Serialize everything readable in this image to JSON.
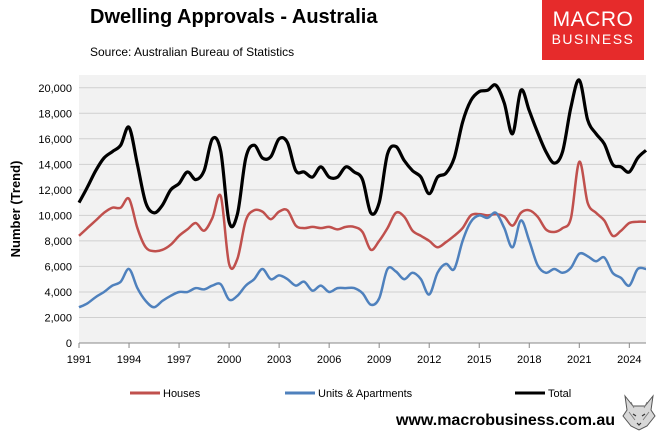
{
  "header": {
    "title": "Dwelling Approvals - Australia",
    "source": "Source: Australian Bureau of Statistics"
  },
  "logo": {
    "line1": "MACRO",
    "line2": "BUSINESS",
    "color": "#e62b2b"
  },
  "footer": {
    "url": "www.macrobusiness.com.au"
  },
  "chart_data": {
    "type": "line",
    "title": "Dwelling Approvals - Australia",
    "ylabel": "Number (Trend)",
    "xlabel": "",
    "xlim": [
      1991,
      2025
    ],
    "ylim": [
      0,
      21000
    ],
    "x_ticks": [
      "1991",
      "1994",
      "1997",
      "2000",
      "2003",
      "2006",
      "2009",
      "2012",
      "2015",
      "2018",
      "2021",
      "2024"
    ],
    "y_ticks": [
      "0",
      "2,000",
      "4,000",
      "6,000",
      "8,000",
      "10,000",
      "12,000",
      "14,000",
      "16,000",
      "18,000",
      "20,000"
    ],
    "grid": "horizontal",
    "plot_background": "#f2f2f2",
    "legend_position": "bottom",
    "x": [
      1991,
      1991.5,
      1992,
      1992.5,
      1993,
      1993.5,
      1994,
      1994.5,
      1995,
      1995.5,
      1996,
      1996.5,
      1997,
      1997.5,
      1998,
      1998.5,
      1999,
      1999.5,
      2000,
      2000.5,
      2001,
      2001.5,
      2002,
      2002.5,
      2003,
      2003.5,
      2004,
      2004.5,
      2005,
      2005.5,
      2006,
      2006.5,
      2007,
      2007.5,
      2008,
      2008.5,
      2009,
      2009.5,
      2010,
      2010.5,
      2011,
      2011.5,
      2012,
      2012.5,
      2013,
      2013.5,
      2014,
      2014.5,
      2015,
      2015.5,
      2016,
      2016.5,
      2017,
      2017.5,
      2018,
      2018.5,
      2019,
      2019.5,
      2020,
      2020.5,
      2021,
      2021.5,
      2022,
      2022.5,
      2023,
      2023.5,
      2024,
      2024.5,
      2025
    ],
    "series": [
      {
        "name": "Houses",
        "color": "#c0504d",
        "values": [
          8400,
          9000,
          9600,
          10200,
          10600,
          10600,
          11300,
          9000,
          7500,
          7200,
          7300,
          7700,
          8400,
          8900,
          9400,
          8800,
          9800,
          11500,
          6200,
          6600,
          9600,
          10400,
          10300,
          9700,
          10300,
          10400,
          9200,
          9000,
          9100,
          9000,
          9100,
          8900,
          9100,
          9100,
          8700,
          7300,
          8000,
          9000,
          10200,
          9900,
          8800,
          8400,
          8000,
          7500,
          7900,
          8400,
          9000,
          10000,
          10100,
          10000,
          10100,
          9900,
          9200,
          10200,
          10400,
          9900,
          8900,
          8700,
          9000,
          9800,
          14200,
          11000,
          10200,
          9600,
          8400,
          8800,
          9400,
          9500,
          9500
        ]
      },
      {
        "name": "Units & Apartments",
        "color": "#4f81bd",
        "values": [
          2800,
          3100,
          3600,
          4000,
          4500,
          4800,
          5800,
          4300,
          3300,
          2800,
          3300,
          3700,
          4000,
          4000,
          4300,
          4200,
          4500,
          4600,
          3400,
          3700,
          4500,
          5000,
          5800,
          5000,
          5300,
          5000,
          4500,
          4800,
          4100,
          4500,
          4000,
          4300,
          4300,
          4300,
          3900,
          3000,
          3500,
          5800,
          5600,
          5000,
          5500,
          5000,
          3800,
          5500,
          6200,
          5800,
          8000,
          9500,
          10000,
          9800,
          10200,
          9000,
          7500,
          9600,
          8000,
          6100,
          5500,
          5800,
          5500,
          5900,
          7000,
          6800,
          6400,
          6700,
          5500,
          5100,
          4500,
          5800,
          5800
        ]
      },
      {
        "name": "Total",
        "color": "#000000",
        "values": [
          11000,
          12200,
          13500,
          14500,
          15000,
          15500,
          16900,
          14000,
          11000,
          10200,
          10800,
          12000,
          12500,
          13400,
          12800,
          13500,
          16000,
          15000,
          9500,
          10100,
          14500,
          15500,
          14500,
          14600,
          16000,
          15700,
          13500,
          13400,
          13000,
          13800,
          13000,
          13000,
          13800,
          13400,
          12800,
          10200,
          11000,
          14800,
          15400,
          14300,
          13500,
          13000,
          11700,
          13000,
          13300,
          14500,
          17300,
          19000,
          19700,
          19800,
          20200,
          18800,
          16400,
          19800,
          18200,
          16500,
          15000,
          14100,
          15000,
          18500,
          20600,
          17500,
          16400,
          15600,
          14000,
          13800,
          13400,
          14500,
          15100
        ]
      }
    ]
  }
}
